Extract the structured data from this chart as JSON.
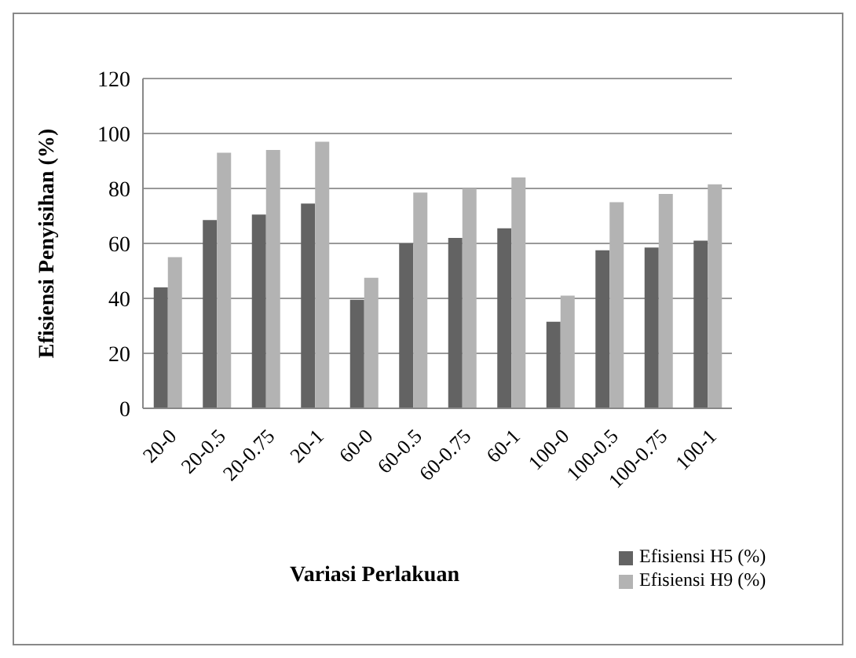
{
  "chart_data": {
    "type": "bar",
    "xlabel": "Variasi Perlakuan",
    "ylabel": "Efisiensi Penyisihan (%)",
    "categories": [
      "20-0",
      "20-0.5",
      "20-0.75",
      "20-1",
      "60-0",
      "60-0.5",
      "60-0.75",
      "60-1",
      "100-0",
      "100-0.5",
      "100-0.75",
      "100-1"
    ],
    "series": [
      {
        "name": "Efisiensi H5 (%)",
        "color": "#636363",
        "values": [
          44,
          68.5,
          70.5,
          74.5,
          39.5,
          60,
          62,
          65.5,
          31.5,
          57.5,
          58.5,
          61
        ]
      },
      {
        "name": "Efisiensi H9 (%)",
        "color": "#b3b3b3",
        "values": [
          55,
          93,
          94,
          97,
          47.5,
          78.5,
          80,
          84,
          41,
          75,
          78,
          81.5
        ]
      }
    ],
    "ylim": [
      0,
      120
    ],
    "yticks": [
      0,
      20,
      40,
      60,
      80,
      100,
      120
    ],
    "grid": "y",
    "legend": "bottom right"
  }
}
